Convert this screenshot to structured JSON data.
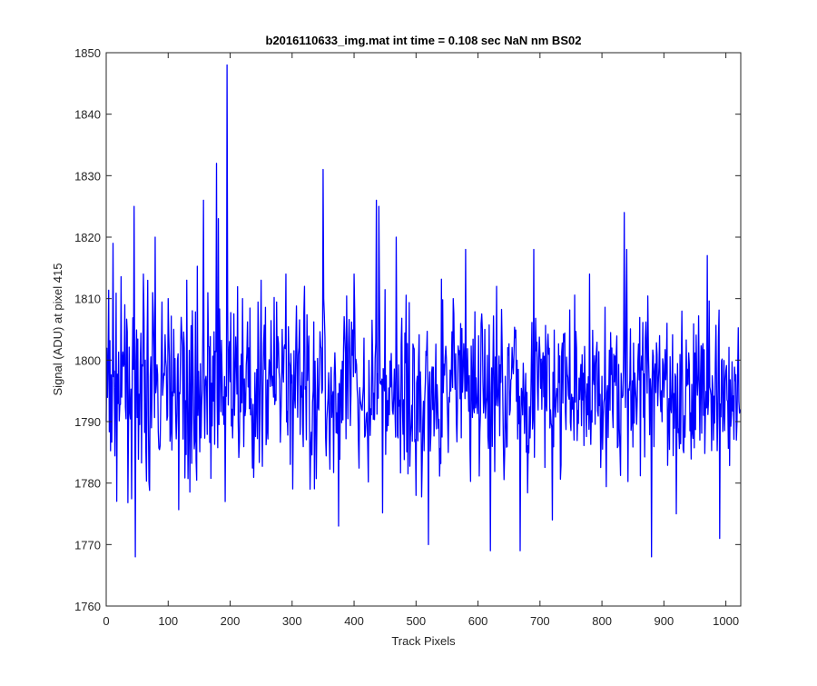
{
  "chart_data": {
    "type": "line",
    "title": "b2016110633_img.mat int time = 0.108 sec  NaN nm BS02",
    "xlabel": "Track Pixels",
    "ylabel": "Signal (ADU) at pixel 415",
    "xlim": [
      0,
      1024
    ],
    "ylim": [
      1760,
      1850
    ],
    "xticks": [
      0,
      100,
      200,
      300,
      400,
      500,
      600,
      700,
      800,
      900,
      1000
    ],
    "yticks": [
      1760,
      1770,
      1780,
      1790,
      1800,
      1810,
      1820,
      1830,
      1840,
      1850
    ],
    "grid": false,
    "legend": "none",
    "series": [
      {
        "color": "#0000ff",
        "mean": 1795,
        "n_points": 1024,
        "x": [
          0,
          11,
          30,
          45,
          47,
          60,
          79,
          100,
          130,
          157,
          178,
          181,
          192,
          195,
          220,
          250,
          290,
          320,
          350,
          351,
          375,
          400,
          436,
          440,
          468,
          500,
          520,
          560,
          580,
          611,
          620,
          630,
          668,
          690,
          720,
          780,
          836,
          840,
          880,
          905,
          920,
          970,
          990,
          1024
        ],
        "y": [
          1790,
          1819,
          1809,
          1825,
          1768,
          1814,
          1820,
          1810,
          1813,
          1826,
          1832,
          1823,
          1777,
          1848,
          1810,
          1813,
          1814,
          1812,
          1831,
          1810,
          1773,
          1814,
          1826,
          1825,
          1820,
          1778,
          1770,
          1810,
          1818,
          1805,
          1769,
          1812,
          1769,
          1818,
          1774,
          1814,
          1824,
          1818,
          1768,
          1806,
          1775,
          1817,
          1771,
          1792
        ]
      }
    ]
  }
}
